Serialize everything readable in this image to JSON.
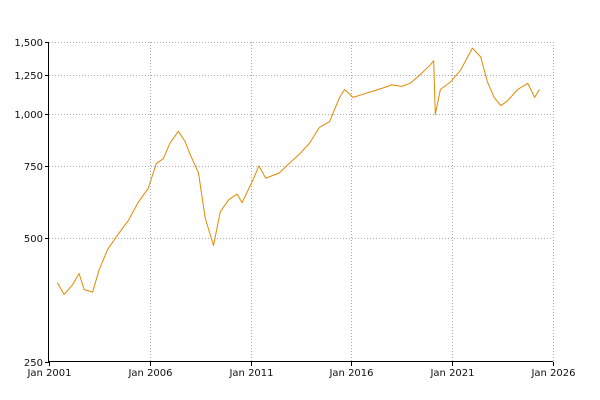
{
  "chart_data": {
    "type": "line",
    "title": "",
    "xlabel": "",
    "ylabel": "",
    "y_scale": "log",
    "ylim": [
      250,
      1500
    ],
    "xlim": [
      "2001-01-01",
      "2026-01-01"
    ],
    "grid": true,
    "line_color": "#e08a00",
    "y_ticks": [
      {
        "value": 250,
        "label": "250"
      },
      {
        "value": 500,
        "label": "500"
      },
      {
        "value": 750,
        "label": "750"
      },
      {
        "value": 1000,
        "label": "1,000"
      },
      {
        "value": 1250,
        "label": "1,250"
      },
      {
        "value": 1500,
        "label": "1,500"
      }
    ],
    "x_ticks": [
      {
        "value": "2001-01-01",
        "label": "Jan 2001"
      },
      {
        "value": "2006-01-01",
        "label": "Jan 2006"
      },
      {
        "value": "2011-01-01",
        "label": "Jan 2011"
      },
      {
        "value": "2016-01-01",
        "label": "Jan 2016"
      },
      {
        "value": "2021-01-01",
        "label": "Jan 2021"
      },
      {
        "value": "2026-01-01",
        "label": "Jan 2026"
      }
    ],
    "series": [
      {
        "points": [
          [
            "2001-06-01",
            390
          ],
          [
            "2001-10-01",
            365
          ],
          [
            "2002-03-01",
            385
          ],
          [
            "2002-07-01",
            410
          ],
          [
            "2002-10-01",
            375
          ],
          [
            "2003-03-01",
            370
          ],
          [
            "2003-07-01",
            420
          ],
          [
            "2003-12-01",
            470
          ],
          [
            "2004-06-01",
            510
          ],
          [
            "2004-12-01",
            550
          ],
          [
            "2005-06-01",
            610
          ],
          [
            "2005-12-01",
            660
          ],
          [
            "2006-05-01",
            760
          ],
          [
            "2006-09-01",
            780
          ],
          [
            "2007-01-01",
            850
          ],
          [
            "2007-06-01",
            910
          ],
          [
            "2007-10-01",
            860
          ],
          [
            "2008-01-01",
            800
          ],
          [
            "2008-06-01",
            720
          ],
          [
            "2008-10-01",
            560
          ],
          [
            "2009-03-01",
            480
          ],
          [
            "2009-07-01",
            580
          ],
          [
            "2009-12-01",
            620
          ],
          [
            "2010-05-01",
            640
          ],
          [
            "2010-08-01",
            610
          ],
          [
            "2011-03-01",
            700
          ],
          [
            "2011-06-01",
            750
          ],
          [
            "2011-10-01",
            700
          ],
          [
            "2012-06-01",
            720
          ],
          [
            "2012-12-01",
            760
          ],
          [
            "2013-06-01",
            800
          ],
          [
            "2013-12-01",
            850
          ],
          [
            "2014-06-01",
            930
          ],
          [
            "2014-12-01",
            960
          ],
          [
            "2015-06-01",
            1100
          ],
          [
            "2015-09-01",
            1150
          ],
          [
            "2016-02-01",
            1100
          ],
          [
            "2016-08-01",
            1120
          ],
          [
            "2017-02-01",
            1140
          ],
          [
            "2017-08-01",
            1160
          ],
          [
            "2018-01-01",
            1180
          ],
          [
            "2018-07-01",
            1170
          ],
          [
            "2018-12-01",
            1190
          ],
          [
            "2019-06-01",
            1250
          ],
          [
            "2019-12-01",
            1320
          ],
          [
            "2020-02-01",
            1350
          ],
          [
            "2020-03-01",
            1000
          ],
          [
            "2020-06-01",
            1150
          ],
          [
            "2020-12-01",
            1200
          ],
          [
            "2021-06-01",
            1280
          ],
          [
            "2022-01-01",
            1450
          ],
          [
            "2022-06-01",
            1380
          ],
          [
            "2022-10-01",
            1200
          ],
          [
            "2023-02-01",
            1100
          ],
          [
            "2023-06-01",
            1050
          ],
          [
            "2023-10-01",
            1080
          ],
          [
            "2024-04-01",
            1150
          ],
          [
            "2024-10-01",
            1190
          ],
          [
            "2025-02-01",
            1100
          ],
          [
            "2025-05-01",
            1150
          ]
        ]
      }
    ]
  }
}
